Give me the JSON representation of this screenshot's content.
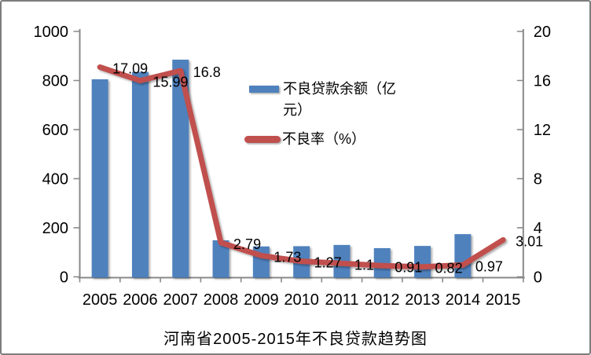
{
  "frame": {
    "border_color": "#7d7d7d",
    "background": "#ffffff"
  },
  "chart_data": {
    "type": "bar+line",
    "title": "河南省2005-2015年不良贷款趋势图",
    "categories": [
      "2005",
      "2006",
      "2007",
      "2008",
      "2009",
      "2010",
      "2011",
      "2012",
      "2013",
      "2014",
      "2015"
    ],
    "series": [
      {
        "name": "不良贷款余额（亿元）",
        "type": "bar",
        "axis": "left",
        "color": "#4F81BD",
        "values": [
          805,
          835,
          885,
          149,
          124,
          125,
          130,
          117,
          126,
          174,
          null
        ]
      },
      {
        "name": "不良率（%）",
        "type": "line",
        "axis": "right",
        "color": "#C0504D",
        "values": [
          17.09,
          15.99,
          16.8,
          2.79,
          1.73,
          1.27,
          1.1,
          0.91,
          0.82,
          0.97,
          3.01
        ],
        "data_labels": [
          "17.09",
          "15.99",
          "16.8",
          "2.79",
          "1.73",
          "1.27",
          "1.1",
          "0.91",
          "0.82",
          "0.97",
          "3.01"
        ]
      }
    ],
    "left_axis": {
      "min": 0,
      "max": 1000,
      "step": 200,
      "tick_labels": [
        "1000",
        "800",
        "600",
        "400",
        "200",
        "0"
      ]
    },
    "right_axis": {
      "min": 0,
      "max": 20,
      "step": 4,
      "tick_labels": [
        "20",
        "16",
        "12",
        "8",
        "4",
        "0"
      ]
    },
    "grid": false,
    "legend_position": "center",
    "axis_color": "#898989",
    "text_color": "#000000"
  },
  "legend": {
    "items": [
      {
        "label": "不良贷款余额（亿元）",
        "swatch": "bar"
      },
      {
        "label": "不良率（%）",
        "swatch": "line"
      }
    ]
  }
}
